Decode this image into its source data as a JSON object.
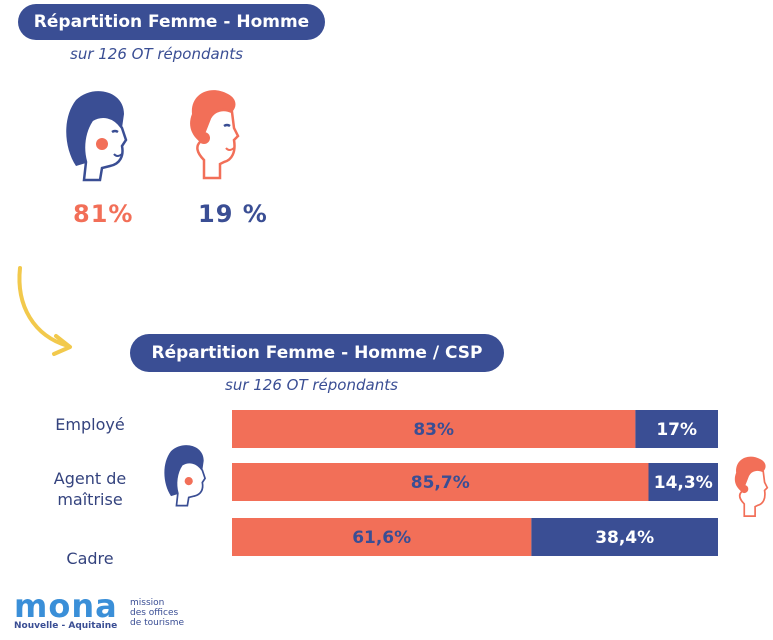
{
  "top": {
    "title": "Répartition Femme - Homme",
    "subtitle": "sur 126 OT répondants",
    "female_pct": "81%",
    "male_pct": "19 %"
  },
  "bottom": {
    "title": "Répartition Femme - Homme / CSP",
    "subtitle": "sur 126 OT répondants"
  },
  "colors": {
    "female": "#f26f58",
    "male": "#3a4e94",
    "arrow": "#f2c94c"
  },
  "chart_data": {
    "type": "bar",
    "orientation": "horizontal",
    "stacked": true,
    "categories": [
      "Employé",
      "Agent de maîtrise",
      "Cadre"
    ],
    "category_lines": [
      [
        "Employé"
      ],
      [
        "Agent de",
        "maîtrise"
      ],
      [
        "Cadre"
      ]
    ],
    "series": [
      {
        "values": [
          83,
          85.7,
          61.6
        ],
        "labels": [
          "83%",
          "85,7%",
          "61,6%"
        ],
        "color": "#f26f58"
      },
      {
        "values": [
          17,
          14.3,
          38.4
        ],
        "labels": [
          "17%",
          "14,3%",
          "38,4%"
        ],
        "color": "#3a4e94"
      }
    ],
    "xlim": [
      0,
      100
    ],
    "grid": false,
    "title": "Répartition Femme - Homme / CSP",
    "subtitle": "sur 126 OT répondants"
  },
  "logo": {
    "word": "mona",
    "region": "Nouvelle - Aquitaine",
    "tagline": [
      "mission",
      "des offices",
      "de tourisme"
    ]
  }
}
